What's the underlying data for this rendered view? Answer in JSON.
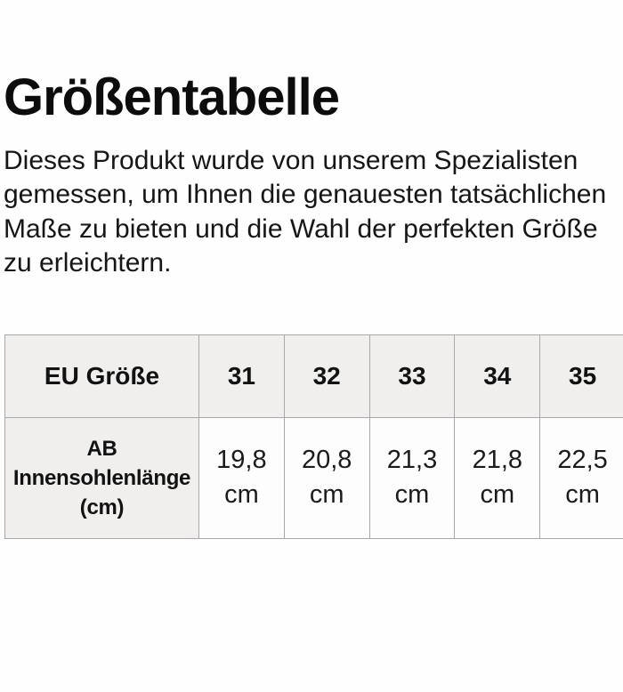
{
  "page": {
    "title": "Größentabelle",
    "description": "Dieses Produkt wurde von unserem Spezialisten gemessen, um Ihnen die genauesten tatsächlichen Maße zu bieten und die Wahl der perfekten Größe zu erleichtern."
  },
  "size_table": {
    "header_label": "EU Größe",
    "sizes": [
      "31",
      "32",
      "33",
      "34",
      "35"
    ],
    "row_label": "AB Innensohlenlänge (cm)",
    "values": [
      "19,8",
      "20,8",
      "21,3",
      "21,8",
      "22,5"
    ],
    "unit": "cm"
  },
  "colors": {
    "header_cell_bg": "#f0efed",
    "value_cell_bg": "#fdfdfd",
    "table_border": "#a8a8a8",
    "text": "#131313",
    "page_bg": "#fefefe"
  },
  "chart_data": {
    "type": "table",
    "title": "Größentabelle",
    "columns": [
      "EU Größe",
      "31",
      "32",
      "33",
      "34",
      "35"
    ],
    "rows": [
      [
        "AB Innensohlenlänge (cm)",
        "19,8 cm",
        "20,8 cm",
        "21,3 cm",
        "21,8 cm",
        "22,5 cm"
      ]
    ]
  }
}
